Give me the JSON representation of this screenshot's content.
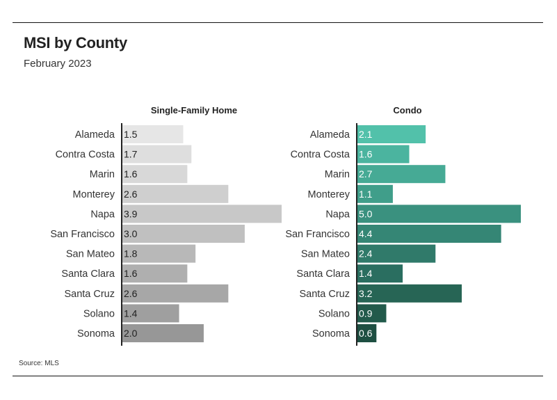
{
  "header": {
    "title": "MSI by County",
    "subtitle": "February 2023"
  },
  "footer": {
    "source": "Source: MLS"
  },
  "chart_data": [
    {
      "type": "bar",
      "orientation": "horizontal",
      "title": "Single-Family Home",
      "categories": [
        "Alameda",
        "Contra Costa",
        "Marin",
        "Monterey",
        "Napa",
        "San Francisco",
        "San Mateo",
        "Santa Clara",
        "Santa Cruz",
        "Solano",
        "Sonoma"
      ],
      "values": [
        1.5,
        1.7,
        1.6,
        2.6,
        3.9,
        3.0,
        1.8,
        1.6,
        2.6,
        1.4,
        2.0
      ],
      "labels": [
        "1.5",
        "1.7",
        "1.6",
        "2.6",
        "3.9",
        "3.0",
        "1.8",
        "1.6",
        "2.6",
        "1.4",
        "2.0"
      ],
      "colors": [
        "#e6e6e6",
        "#dedede",
        "#d8d8d8",
        "#cfcfcf",
        "#c8c8c8",
        "#c0c0c0",
        "#b8b8b8",
        "#afafaf",
        "#a7a7a7",
        "#9f9f9f",
        "#979797"
      ],
      "data_label_color": "#222222",
      "xlim": [
        0,
        3.9
      ],
      "grid": false,
      "legend": "none"
    },
    {
      "type": "bar",
      "orientation": "horizontal",
      "title": "Condo",
      "categories": [
        "Alameda",
        "Contra Costa",
        "Marin",
        "Monterey",
        "Napa",
        "San Francisco",
        "San Mateo",
        "Santa Clara",
        "Santa Cruz",
        "Solano",
        "Sonoma"
      ],
      "values": [
        2.1,
        1.6,
        2.7,
        1.1,
        5.0,
        4.4,
        2.4,
        1.4,
        3.2,
        0.9,
        0.6
      ],
      "labels": [
        "2.1",
        "1.6",
        "2.7",
        "1.1",
        "5.0",
        "4.4",
        "2.4",
        "1.4",
        "3.2",
        "0.9",
        "0.6"
      ],
      "colors": [
        "#52c1aa",
        "#4bb49f",
        "#46aa95",
        "#409e8a",
        "#3a917f",
        "#358675",
        "#307a6a",
        "#2a6e60",
        "#276555",
        "#225a4b",
        "#1e4f42"
      ],
      "data_label_color": "#ffffff",
      "xlim": [
        0,
        5.0
      ],
      "grid": false,
      "legend": "none"
    }
  ]
}
